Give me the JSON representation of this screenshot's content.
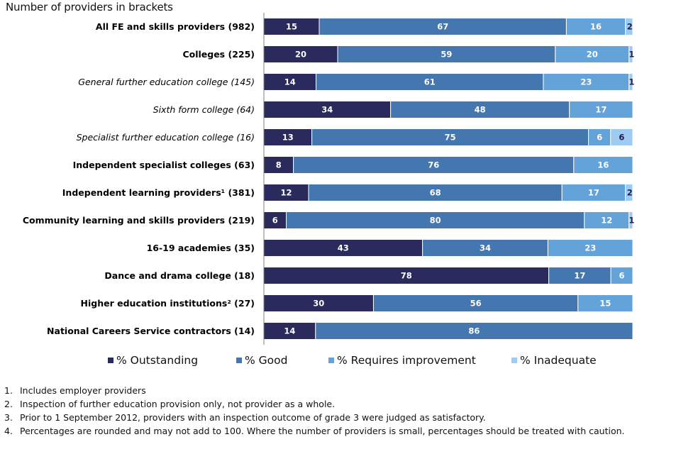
{
  "chart_data": {
    "type": "bar",
    "orientation": "horizontal",
    "stacked": true,
    "normalized": true,
    "title": "",
    "subtitle": "Number of providers in brackets",
    "xlabel": "",
    "ylabel": "",
    "grid": false,
    "legend_position": "bottom",
    "series_names": [
      "% Outstanding",
      "% Good",
      "% Requires improvement",
      "% Inadequate"
    ],
    "colors": [
      "#2b2a5c",
      "#4476b0",
      "#64a3da",
      "#9dcbf1"
    ],
    "label_colors": [
      "#ffffff",
      "#ffffff",
      "#ffffff",
      "#1f1f4d"
    ],
    "categories": [
      {
        "label": "All FE and skills providers (982)",
        "style": "bold"
      },
      {
        "label": "Colleges (225)",
        "style": "bold"
      },
      {
        "label": "General further education college (145)",
        "style": "italic"
      },
      {
        "label": "Sixth form college (64)",
        "style": "italic"
      },
      {
        "label": "Specialist further education college (16)",
        "style": "italic"
      },
      {
        "label": "Independent specialist colleges (63)",
        "style": "bold"
      },
      {
        "label": "Independent learning providers¹ (381)",
        "style": "bold"
      },
      {
        "label": "Community learning and skills providers (219)",
        "style": "bold"
      },
      {
        "label": "16-19 academies (35)",
        "style": "bold"
      },
      {
        "label": "Dance and drama college (18)",
        "style": "bold"
      },
      {
        "label": "Higher education institutions² (27)",
        "style": "bold"
      },
      {
        "label": "National Careers Service contractors (14)",
        "style": "bold"
      }
    ],
    "series": [
      {
        "name": "% Outstanding",
        "values": [
          15,
          20,
          14,
          34,
          13,
          8,
          12,
          6,
          43,
          78,
          30,
          14
        ]
      },
      {
        "name": "% Good",
        "values": [
          67,
          59,
          61,
          48,
          75,
          76,
          68,
          80,
          34,
          17,
          56,
          86
        ]
      },
      {
        "name": "% Requires improvement",
        "values": [
          16,
          20,
          23,
          17,
          6,
          16,
          17,
          12,
          23,
          6,
          15,
          0
        ]
      },
      {
        "name": "% Inadequate",
        "values": [
          2,
          1,
          1,
          0,
          6,
          0,
          2,
          1,
          0,
          0,
          0,
          0
        ]
      }
    ]
  },
  "notes": [
    {
      "num": "1.",
      "text": "Includes employer  providers"
    },
    {
      "num": "2.",
      "text": "Inspection of further  education provision only, not provider as a whole."
    },
    {
      "num": "3.",
      "text": "Prior to 1 September  2012, providers with an inspection outcome  of grade 3 were judged as satisfactory."
    },
    {
      "num": "4.",
      "text": "Percentages  are rounded and may not add to 100. Where the  number  of providers is small, percentages should be treated with caution."
    }
  ]
}
